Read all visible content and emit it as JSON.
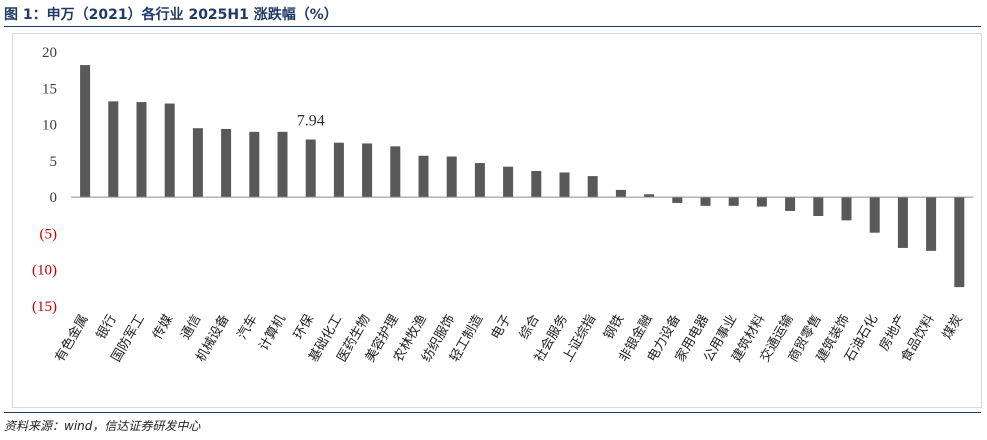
{
  "figure": {
    "title": "图 1：申万（2021）各行业 2025H1 涨跌幅（%）",
    "source": "资料来源：wind，信达证券研发中心"
  },
  "colors": {
    "bar": "#595959",
    "positive_tick": "#404040",
    "negative_tick": "#c00000",
    "title": "#1f3a64"
  },
  "chart_data": {
    "type": "bar",
    "title": "图 1：申万（2021）各行业 2025H1 涨跌幅（%）",
    "xlabel": "",
    "ylabel": "",
    "ylim": [
      -15,
      20
    ],
    "yticks": [
      20,
      15,
      10,
      5,
      0,
      -5,
      -10,
      -15
    ],
    "ytick_labels": [
      "20",
      "15",
      "10",
      "5",
      "0",
      "(5)",
      "(10)",
      "(15)"
    ],
    "grid": false,
    "legend": "none",
    "categories": [
      "有色金属",
      "银行",
      "国防军工",
      "传媒",
      "通信",
      "机械设备",
      "汽车",
      "计算机",
      "环保",
      "基础化工",
      "医药生物",
      "美容护理",
      "农林牧渔",
      "纺织服饰",
      "轻工制造",
      "电子",
      "综合",
      "社会服务",
      "上证综指",
      "钢铁",
      "非银金融",
      "电力设备",
      "家用电器",
      "公用事业",
      "建筑材料",
      "交通运输",
      "商贸零售",
      "建筑装饰",
      "石油石化",
      "房地产",
      "食品饮料",
      "煤炭"
    ],
    "values": [
      18.2,
      13.2,
      13.1,
      12.9,
      9.5,
      9.4,
      9.0,
      9.0,
      7.94,
      7.5,
      7.4,
      7.0,
      5.7,
      5.6,
      4.7,
      4.2,
      3.6,
      3.4,
      2.9,
      1.0,
      0.4,
      -0.8,
      -1.2,
      -1.2,
      -1.3,
      -1.9,
      -2.6,
      -3.2,
      -4.9,
      -7.0,
      -7.4,
      -12.4
    ],
    "data_labels": [
      {
        "category": "环保",
        "text": "7.94"
      }
    ]
  }
}
